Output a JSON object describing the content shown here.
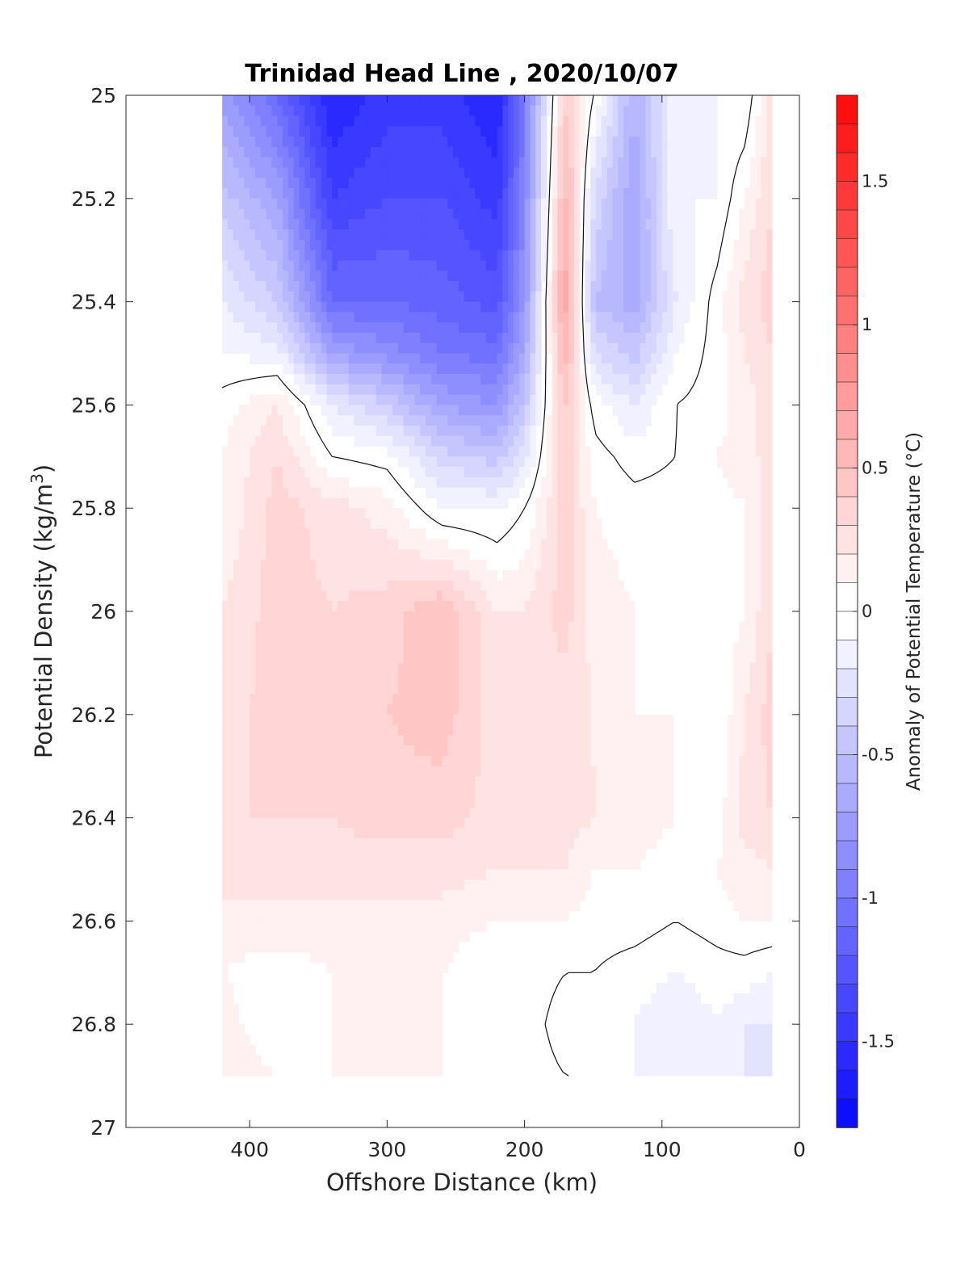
{
  "chart_data": {
    "type": "heatmap",
    "title": "Trinidad Head Line , 2020/10/07",
    "xlabel": "Offshore Distance (km)",
    "ylabel_main": "Potential Density (kg/m",
    "ylabel_sup": "3",
    "ylabel_close": ")",
    "colorbar_label": "Anomaly of Potential Temperature (°C)",
    "xlim": [
      490,
      0
    ],
    "ylim": [
      25,
      27
    ],
    "y_reversed": true,
    "x_ticks": [
      "400",
      "300",
      "200",
      "100",
      "0"
    ],
    "x_tick_values": [
      400,
      300,
      200,
      100,
      0
    ],
    "y_ticks": [
      "25",
      "25.2",
      "25.4",
      "25.6",
      "25.8",
      "26",
      "26.2",
      "26.4",
      "26.6",
      "26.8",
      "27"
    ],
    "y_tick_values": [
      25,
      25.2,
      25.4,
      25.6,
      25.8,
      26,
      26.2,
      26.4,
      26.6,
      26.8,
      27
    ],
    "colorbar_range": [
      -1.8,
      1.8
    ],
    "colorbar_step": 0.1,
    "colorbar_ticks": [
      "1.5",
      "1",
      "0.5",
      "0",
      "-0.5",
      "-1",
      "-1.5"
    ],
    "colorbar_tick_values": [
      1.5,
      1,
      0.5,
      0,
      -0.5,
      -1,
      -1.5
    ],
    "colormap": "blue-white-red",
    "color_negative": "#0000ff",
    "color_positive": "#ff0000",
    "color_zero": "#ffffff",
    "data_extent": {
      "x": [
        20,
        420
      ],
      "y": [
        25,
        26.9
      ]
    },
    "density_levels": [
      25.0,
      25.2,
      25.4,
      25.5,
      25.6,
      25.7,
      25.8,
      26.0,
      26.2,
      26.4,
      26.5,
      26.6,
      26.7,
      26.8,
      26.9
    ],
    "stations": [
      {
        "x": 420,
        "anomaly": [
          -0.75,
          -0.45,
          -0.2,
          -0.1,
          0.05,
          0.1,
          0.1,
          0.2,
          0.25,
          0.3,
          0.25,
          0.15,
          0.1,
          0.15,
          0.2
        ]
      },
      {
        "x": 380,
        "anomaly": [
          -1.1,
          -0.7,
          -0.4,
          -0.15,
          0.2,
          0.3,
          0.35,
          0.35,
          0.35,
          0.3,
          0.25,
          0.15,
          0.05,
          0.0,
          0.1
        ]
      },
      {
        "x": 340,
        "anomaly": [
          -1.6,
          -1.4,
          -1.1,
          -0.7,
          -0.2,
          0.0,
          0.25,
          0.3,
          0.35,
          0.3,
          0.25,
          0.15,
          0.1,
          0.1,
          0.1
        ]
      },
      {
        "x": 300,
        "anomaly": [
          -1.45,
          -1.3,
          -1.1,
          -0.85,
          -0.4,
          -0.05,
          0.15,
          0.35,
          0.4,
          0.35,
          0.25,
          0.15,
          0.1,
          0.1,
          0.1
        ]
      },
      {
        "x": 260,
        "anomaly": [
          -1.45,
          -1.3,
          -1.15,
          -1.0,
          -0.7,
          -0.35,
          -0.1,
          0.5,
          0.45,
          0.35,
          0.25,
          0.15,
          0.1,
          0.1,
          0.1
        ]
      },
      {
        "x": 220,
        "anomaly": [
          -1.6,
          -1.45,
          -1.25,
          -1.05,
          -0.8,
          -0.45,
          -0.1,
          0.2,
          0.25,
          0.25,
          0.2,
          0.1,
          0.0,
          0.05,
          0.05
        ]
      },
      {
        "x": 200,
        "anomaly": [
          -1.0,
          -0.9,
          -0.8,
          -0.65,
          -0.45,
          -0.25,
          0.0,
          0.2,
          0.3,
          0.3,
          0.2,
          0.1,
          0.05,
          0.05,
          0.05
        ]
      },
      {
        "x": 170,
        "anomaly": [
          0.45,
          0.6,
          0.75,
          0.6,
          0.45,
          0.4,
          0.35,
          0.35,
          0.25,
          0.25,
          0.2,
          0.1,
          0.0,
          -0.05,
          0.0
        ]
      },
      {
        "x": 150,
        "anomaly": [
          0.0,
          -0.3,
          -0.5,
          -0.3,
          -0.05,
          0.05,
          0.1,
          0.15,
          0.2,
          0.2,
          0.1,
          0.05,
          0.0,
          -0.05,
          0.0
        ]
      },
      {
        "x": 120,
        "anomaly": [
          -0.6,
          -0.7,
          -0.65,
          -0.45,
          -0.2,
          -0.05,
          0.05,
          0.1,
          0.1,
          0.15,
          0.1,
          0.05,
          -0.05,
          -0.1,
          -0.1
        ]
      },
      {
        "x": 90,
        "anomaly": [
          -0.1,
          -0.1,
          -0.2,
          -0.1,
          0.0,
          0.0,
          0.05,
          0.05,
          0.1,
          0.1,
          0.05,
          0.0,
          -0.1,
          -0.2,
          -0.15
        ]
      },
      {
        "x": 60,
        "anomaly": [
          -0.1,
          -0.1,
          0.05,
          0.05,
          0.05,
          0.1,
          0.05,
          0.05,
          0.0,
          0.05,
          0.1,
          0.05,
          -0.05,
          -0.1,
          -0.15
        ]
      },
      {
        "x": 40,
        "anomaly": [
          -0.1,
          0.1,
          0.25,
          0.2,
          0.15,
          0.15,
          0.1,
          0.1,
          0.2,
          0.25,
          0.15,
          0.1,
          -0.05,
          -0.2,
          -0.2
        ]
      },
      {
        "x": 20,
        "anomaly": [
          0.25,
          0.3,
          0.35,
          0.3,
          0.25,
          0.25,
          0.25,
          0.3,
          0.35,
          0.3,
          0.2,
          0.1,
          -0.1,
          -0.2,
          -0.25
        ]
      }
    ],
    "grid": false,
    "contour_level": 0
  }
}
